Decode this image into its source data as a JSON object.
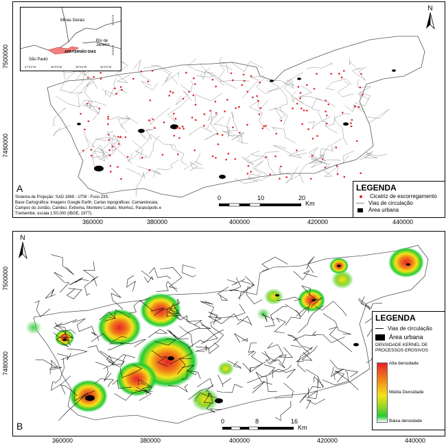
{
  "panel_a": {
    "letter": "A",
    "coords_x": [
      "360000",
      "380000",
      "400000",
      "420000",
      "440000"
    ],
    "coords_y": [
      "7500000",
      "7480000"
    ],
    "inset": {
      "labels": [
        "Minas Gerais",
        "Rio de Janeiro",
        "São Paulo",
        "APA FERNÃO DIAS"
      ],
      "lon_ticks": [
        "47°0'0\"W",
        "46°0'0\"W",
        "45°0'0\"W",
        "44°0'0\"W"
      ],
      "lat_ticks": [
        "22°0'0\"S",
        "23°0'0\"S"
      ]
    },
    "north": "N",
    "scale": {
      "labels": [
        "0",
        "10",
        "20"
      ],
      "unit": "Km"
    },
    "note": [
      "Sistema de Projeção: SAD 1969 - UTM - Fuso 23S.",
      "Base Cartográfica:  Imagens Google Earth; Cartas topográficas: Camanducaia,",
      "Campos do Jordão, Cambuí, Extrema, Monteiro Lobato, Munhoz, Paraisópolis e",
      "Tremembé, escala 1:50.000 (IBGE, 1977)."
    ],
    "legend": {
      "title": "LEGENDA",
      "items": [
        "Cicatriz de escorregamento",
        "Vias de circulação",
        "Área urbana"
      ]
    }
  },
  "panel_b": {
    "letter": "B",
    "coords_x": [
      "360000",
      "380000",
      "400000",
      "420000",
      "440000"
    ],
    "coords_y": [
      "7500000",
      "7480000"
    ],
    "north": "N",
    "scale": {
      "labels": [
        "0",
        "8",
        "16"
      ],
      "unit": "Km"
    },
    "legend": {
      "title": "LEGENDA",
      "items": [
        "Vias de circulação",
        "Área urbana"
      ],
      "density_title": "DENSIDADE KERNEL DE PROCESSOS  EROSIVOS",
      "density_high": "Alta densidade",
      "density_mid": "Média Densidade",
      "density_low": "Baixa densidade"
    }
  },
  "colors": {
    "scar": "#e8202a",
    "urban": "#000000",
    "high": "#ee3322",
    "mid": "#f5e31a",
    "low": "#22cc33"
  }
}
